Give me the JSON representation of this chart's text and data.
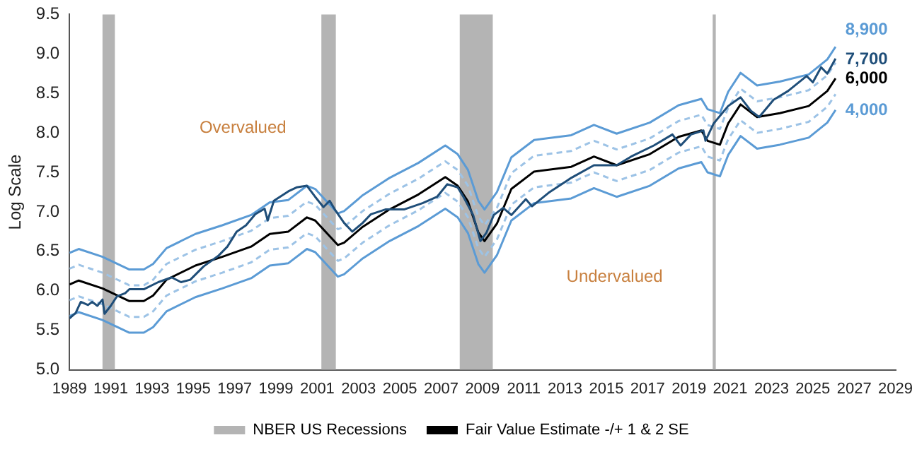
{
  "chart_data": {
    "type": "line",
    "ylabel": "Log Scale",
    "x": [
      1989,
      1989.45,
      1990.6,
      1991.9,
      1992.6,
      1993.05,
      1993.7,
      1995.1,
      1996.4,
      1997.8,
      1998.7,
      1999.6,
      2000.5,
      2000.9,
      2002.0,
      2002.3,
      2003.2,
      2004.5,
      2005.9,
      2007.2,
      2007.8,
      2008.3,
      2008.8,
      2009.1,
      2009.7,
      2010.4,
      2011.5,
      2013.3,
      2014.4,
      2015.5,
      2017.1,
      2018.5,
      2019.6,
      2019.9,
      2020.5,
      2020.9,
      2021.5,
      2022.3,
      2023.4,
      2024.8,
      2025.7,
      2026.1
    ],
    "series": [
      {
        "color": "#5b9bd5",
        "values": [
          6.48,
          6.53,
          6.43,
          6.27,
          6.27,
          6.34,
          6.54,
          6.72,
          6.83,
          6.96,
          7.12,
          7.15,
          7.33,
          7.29,
          6.98,
          7.01,
          7.21,
          7.43,
          7.62,
          7.84,
          7.73,
          7.53,
          7.14,
          7.03,
          7.25,
          7.69,
          7.91,
          7.97,
          8.1,
          7.99,
          8.13,
          8.35,
          8.43,
          8.3,
          8.25,
          8.52,
          8.76,
          8.6,
          8.65,
          8.74,
          8.93,
          9.09
        ]
      },
      {
        "color": "#9dc3e6",
        "line_style": "dashed",
        "values": [
          6.28,
          6.33,
          6.23,
          6.07,
          6.07,
          6.14,
          6.34,
          6.52,
          6.63,
          6.76,
          6.92,
          6.95,
          7.13,
          7.09,
          6.78,
          6.81,
          7.01,
          7.23,
          7.42,
          7.64,
          7.53,
          7.33,
          6.94,
          6.83,
          7.05,
          7.49,
          7.71,
          7.77,
          7.9,
          7.79,
          7.93,
          8.15,
          8.23,
          8.1,
          8.05,
          8.32,
          8.56,
          8.4,
          8.45,
          8.54,
          8.73,
          8.89
        ]
      },
      {
        "color": "#9dc3e6",
        "line_style": "dashed",
        "values": [
          5.88,
          5.93,
          5.83,
          5.67,
          5.67,
          5.74,
          5.94,
          6.12,
          6.23,
          6.36,
          6.52,
          6.55,
          6.73,
          6.69,
          6.38,
          6.41,
          6.61,
          6.83,
          7.02,
          7.24,
          7.13,
          6.93,
          6.54,
          6.43,
          6.65,
          7.09,
          7.31,
          7.37,
          7.5,
          7.39,
          7.53,
          7.75,
          7.83,
          7.7,
          7.65,
          7.92,
          8.16,
          8.0,
          8.05,
          8.14,
          8.33,
          8.49
        ]
      },
      {
        "color": "#5b9bd5",
        "values": [
          5.68,
          5.73,
          5.63,
          5.47,
          5.47,
          5.54,
          5.74,
          5.92,
          6.03,
          6.16,
          6.32,
          6.35,
          6.53,
          6.49,
          6.18,
          6.21,
          6.41,
          6.63,
          6.82,
          7.04,
          6.93,
          6.73,
          6.34,
          6.23,
          6.45,
          6.89,
          7.11,
          7.17,
          7.3,
          7.19,
          7.33,
          7.55,
          7.63,
          7.5,
          7.45,
          7.72,
          7.96,
          7.8,
          7.85,
          7.94,
          8.13,
          8.29
        ]
      },
      {
        "name": "Fair Value Estimate -/+ 1 & 2 SE",
        "color": "#000000",
        "values": [
          6.08,
          6.13,
          6.03,
          5.87,
          5.87,
          5.94,
          6.14,
          6.32,
          6.43,
          6.56,
          6.72,
          6.75,
          6.93,
          6.89,
          6.58,
          6.61,
          6.81,
          7.03,
          7.22,
          7.44,
          7.33,
          7.13,
          6.74,
          6.63,
          6.85,
          7.29,
          7.51,
          7.57,
          7.7,
          7.59,
          7.73,
          7.95,
          8.03,
          7.9,
          7.85,
          8.12,
          8.36,
          8.2,
          8.25,
          8.34,
          8.53,
          8.69
        ]
      },
      {
        "color": "#1f4e79",
        "x": [
          1989.0,
          1989.3,
          1989.55,
          1989.9,
          1990.1,
          1990.35,
          1990.6,
          1990.7,
          1991.0,
          1991.3,
          1991.7,
          1991.9,
          1992.6,
          1993.3,
          1993.95,
          1994.4,
          1994.85,
          1995.5,
          1996.2,
          1996.65,
          1997.1,
          1997.55,
          1998.0,
          1998.45,
          1998.6,
          1998.9,
          1999.6,
          2000.0,
          2000.5,
          2000.9,
          2001.3,
          2001.6,
          2001.85,
          2002.3,
          2002.7,
          2003.2,
          2003.6,
          2004.3,
          2005.2,
          2006.1,
          2006.8,
          2007.3,
          2007.8,
          2008.1,
          2008.55,
          2008.9,
          2009.2,
          2009.55,
          2010.0,
          2010.4,
          2011.1,
          2011.4,
          2012.2,
          2013.3,
          2014.4,
          2015.5,
          2016.2,
          2017.3,
          2018.2,
          2018.6,
          2019.1,
          2019.7,
          2019.8,
          2020.2,
          2020.9,
          2021.5,
          2022.0,
          2022.4,
          2023.1,
          2023.8,
          2024.7,
          2025.0,
          2025.4,
          2025.7,
          2026.1
        ],
        "values": [
          5.65,
          5.72,
          5.86,
          5.82,
          5.86,
          5.81,
          5.89,
          5.71,
          5.81,
          5.93,
          5.97,
          6.02,
          6.02,
          6.11,
          6.17,
          6.11,
          6.14,
          6.31,
          6.44,
          6.56,
          6.75,
          6.83,
          6.97,
          7.04,
          6.89,
          7.14,
          7.26,
          7.31,
          7.33,
          7.19,
          7.06,
          7.14,
          7.03,
          6.86,
          6.75,
          6.86,
          6.97,
          7.03,
          7.03,
          7.11,
          7.19,
          7.35,
          7.31,
          7.18,
          6.96,
          6.63,
          6.74,
          6.96,
          7.05,
          6.96,
          7.16,
          7.07,
          7.24,
          7.43,
          7.59,
          7.59,
          7.7,
          7.84,
          7.98,
          7.84,
          7.98,
          8.03,
          7.9,
          8.12,
          8.34,
          8.45,
          8.28,
          8.2,
          8.42,
          8.53,
          8.72,
          8.64,
          8.83,
          8.75,
          8.94
        ]
      }
    ],
    "bands": [
      {
        "axis": "x",
        "from": 1990.6,
        "to": 1991.2,
        "label": "NBER US Recessions",
        "color": "#b4b4b4"
      },
      {
        "axis": "x",
        "from": 2001.2,
        "to": 2001.9,
        "color": "#b4b4b4"
      },
      {
        "axis": "x",
        "from": 2007.9,
        "to": 2009.5,
        "color": "#b4b4b4"
      },
      {
        "axis": "x",
        "from": 2020.15,
        "to": 2020.3,
        "color": "#b4b4b4"
      }
    ],
    "annotations": [
      "Overvalued",
      "Undervalued",
      "8,900",
      "7,700",
      "6,000",
      "4,000"
    ],
    "xlim": [
      1989,
      2029
    ],
    "xticks": [
      1989,
      1991,
      1993,
      1995,
      1997,
      1999,
      2001,
      2003,
      2005,
      2007,
      2009,
      2011,
      2013,
      2015,
      2017,
      2019,
      2021,
      2023,
      2025,
      2027,
      2029
    ],
    "ylim": [
      5,
      9.5
    ],
    "yticks": [
      {
        "value": 5,
        "label": "5.0"
      },
      {
        "value": 5.5,
        "label": "5.5"
      },
      {
        "value": 6,
        "label": "6.0"
      },
      {
        "value": 6.5,
        "label": "6.5"
      },
      {
        "value": 7,
        "label": "7.0"
      },
      {
        "value": 7.5,
        "label": "7.5"
      },
      {
        "value": 8,
        "label": "8.0"
      },
      {
        "value": 8.5,
        "label": "8.5"
      },
      {
        "value": 9,
        "label": "9.0"
      },
      {
        "value": 9.5,
        "label": "9.5"
      }
    ],
    "grid": false,
    "legend": "bottom",
    "marker": "none"
  }
}
